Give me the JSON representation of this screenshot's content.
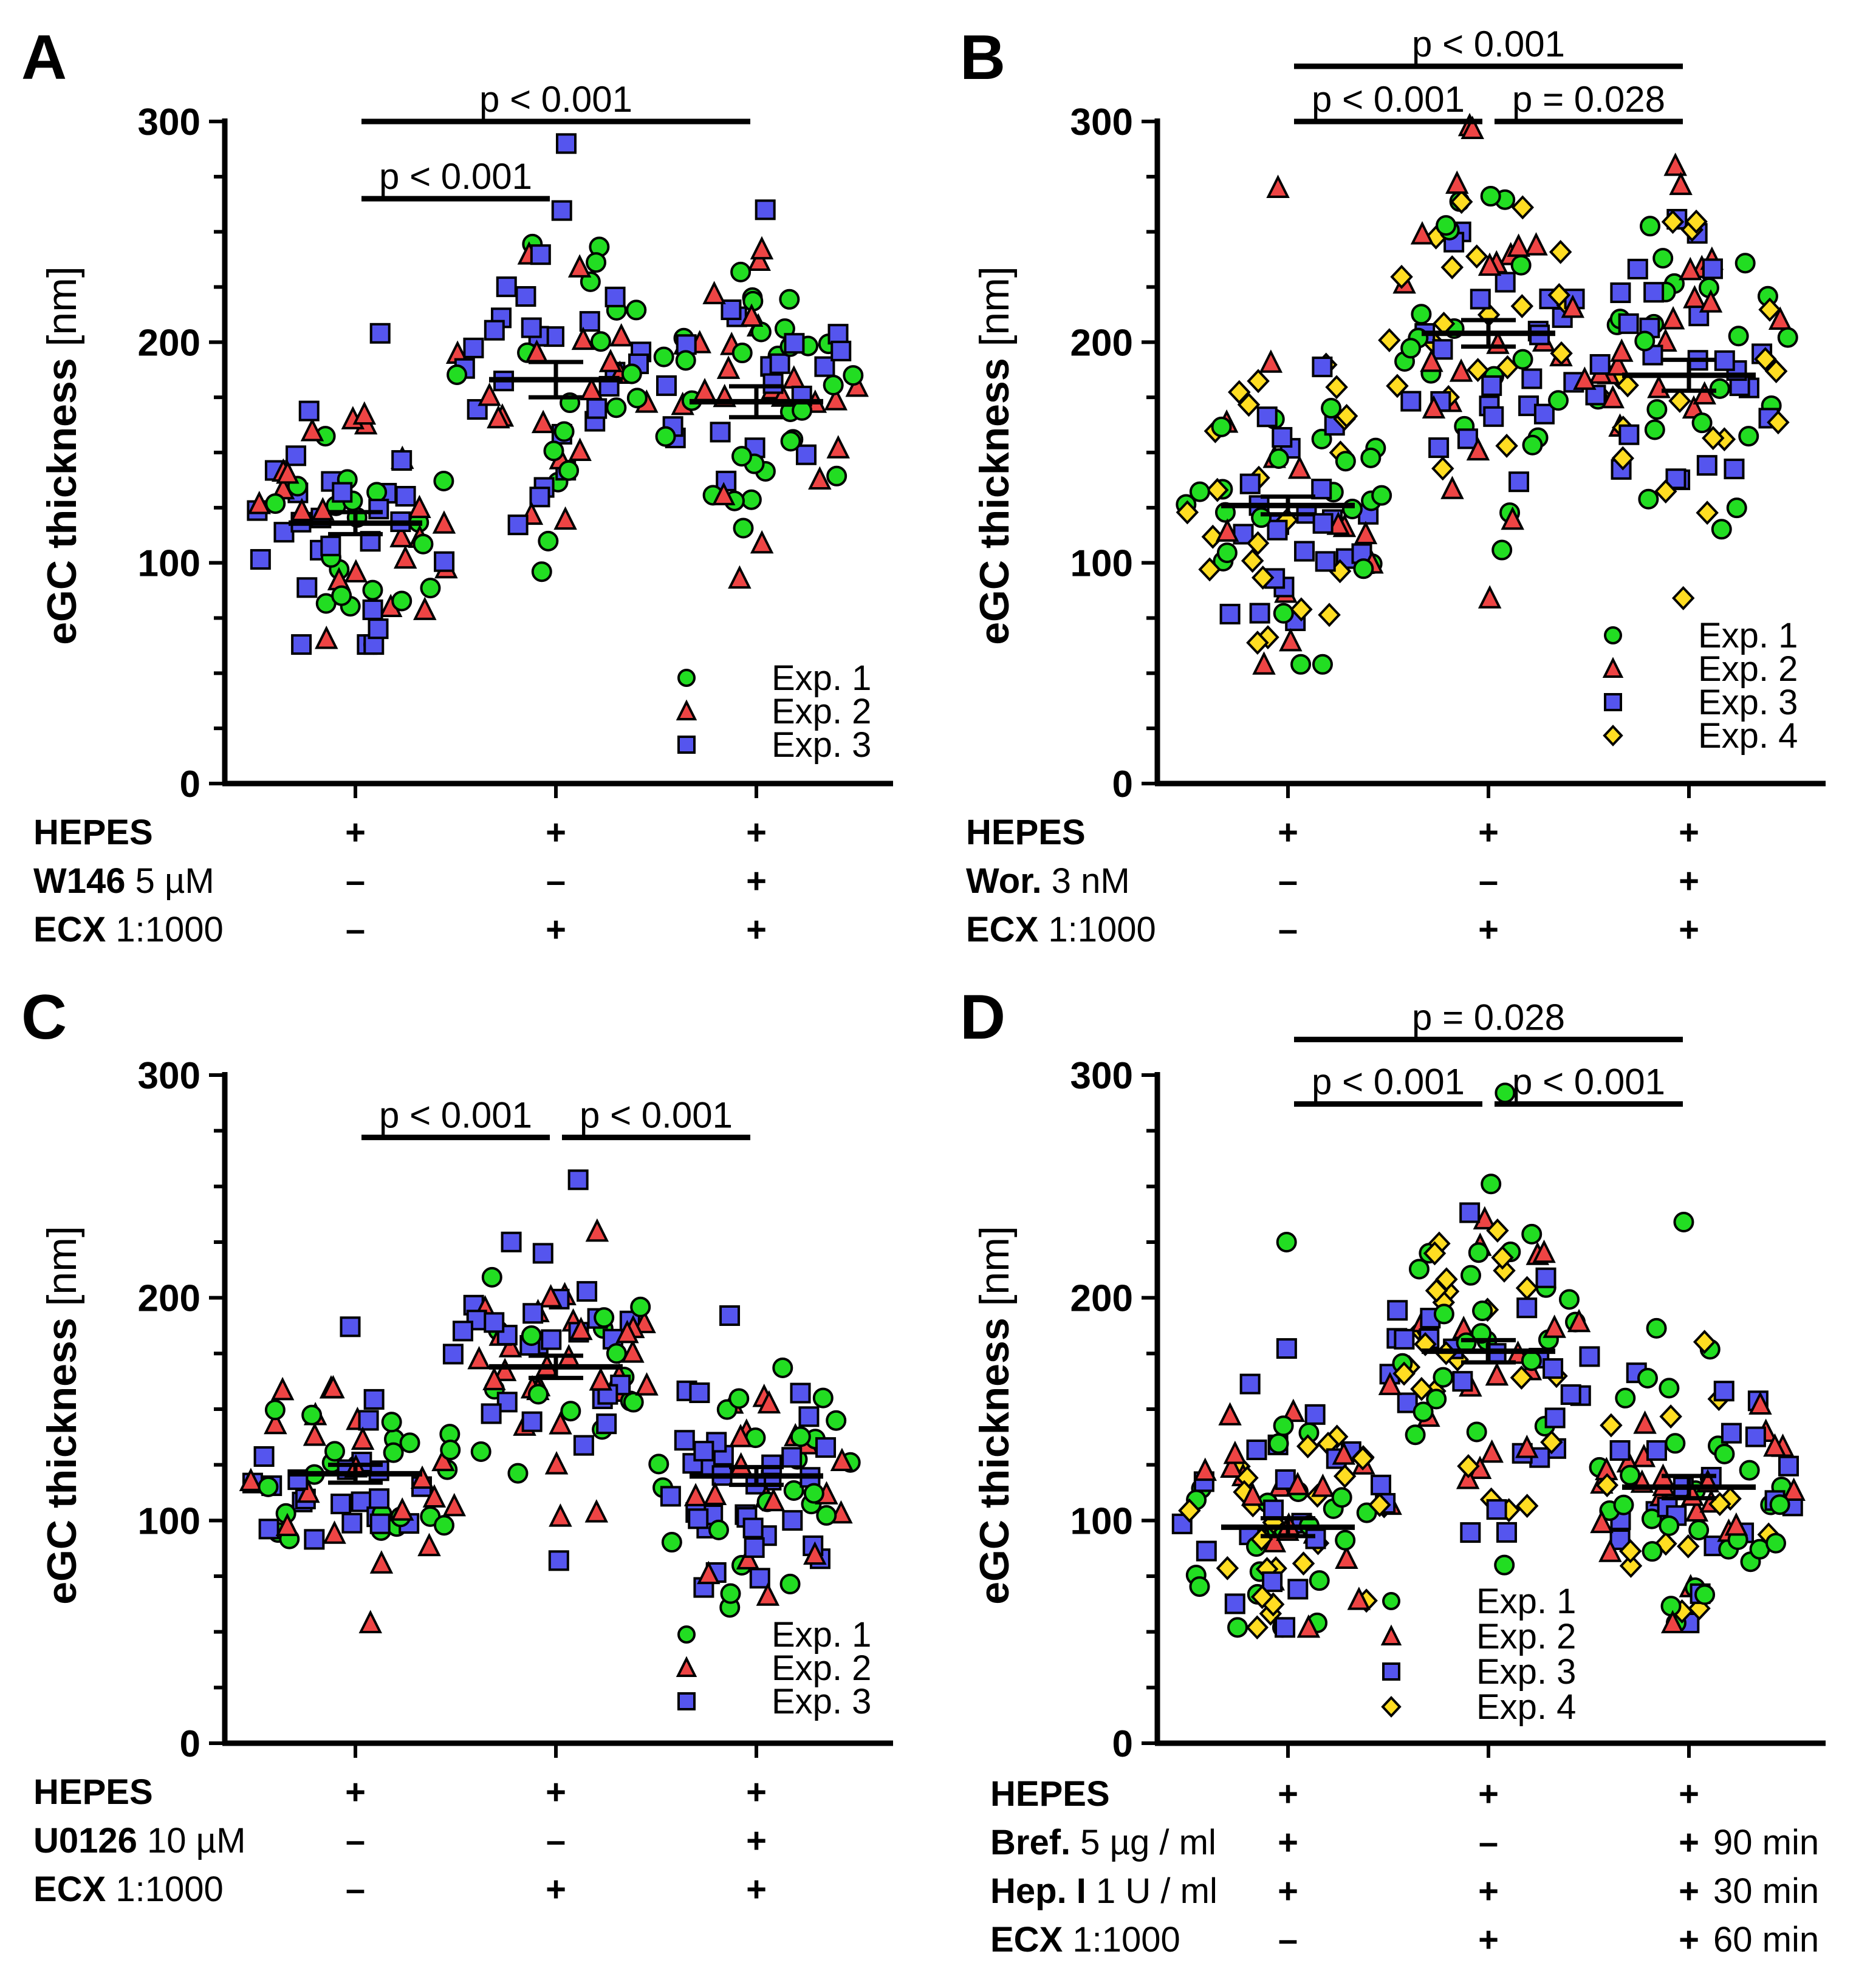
{
  "chart_data": [
    {
      "panel": "A",
      "type": "scatter",
      "ylabel": "eGC thickness",
      "yunit": "[nm]",
      "ylim": [
        0,
        300
      ],
      "yticks": [
        "0",
        "100",
        "200",
        "300"
      ],
      "groups": [
        {
          "mean": 118,
          "sem": 5,
          "min": 63,
          "max": 204,
          "n": 70
        },
        {
          "mean": 183,
          "sem": 8,
          "min": 96,
          "max": 290,
          "n": 64
        },
        {
          "mean": 173,
          "sem": 7,
          "min": 93,
          "max": 260,
          "n": 72
        }
      ],
      "brackets": [
        {
          "from": 0,
          "to": 2,
          "y": 300,
          "label": "p < 0.001"
        },
        {
          "from": 0,
          "to": 1,
          "y": 265,
          "label": "p < 0.001"
        }
      ],
      "legend": [
        "Exp. 1",
        "Exp. 2",
        "Exp. 3"
      ],
      "conditions": [
        {
          "name": "HEPES",
          "dose": "",
          "values": [
            "+",
            "+",
            "+"
          ],
          "extra": ""
        },
        {
          "name": "W146",
          "dose": "5 µM",
          "values": [
            "–",
            "–",
            "+"
          ],
          "extra": ""
        },
        {
          "name": "ECX",
          "dose": "1:1000",
          "values": [
            "–",
            "+",
            "+"
          ],
          "extra": ""
        }
      ]
    },
    {
      "panel": "B",
      "type": "scatter",
      "ylabel": "eGC thickness",
      "yunit": "[nm]",
      "ylim": [
        0,
        300
      ],
      "yticks": [
        "0",
        "100",
        "200",
        "300"
      ],
      "groups": [
        {
          "mean": 126,
          "sem": 4,
          "min": 54,
          "max": 270,
          "n": 84
        },
        {
          "mean": 204,
          "sem": 6,
          "min": 84,
          "max": 298,
          "n": 86
        },
        {
          "mean": 185,
          "sem": 7,
          "min": 84,
          "max": 280,
          "n": 86
        }
      ],
      "brackets": [
        {
          "from": 1,
          "to": 2,
          "y": 300,
          "label": "p = 0.028"
        },
        {
          "from": 0,
          "to": 1,
          "y": 300,
          "label": "p < 0.001"
        },
        {
          "from": 0,
          "to": 2,
          "y": 325,
          "label": "p < 0.001"
        }
      ],
      "legend": [
        "Exp. 1",
        "Exp. 2",
        "Exp. 3",
        "Exp. 4"
      ],
      "conditions": [
        {
          "name": "HEPES",
          "dose": "",
          "values": [
            "+",
            "+",
            "+"
          ],
          "extra": ""
        },
        {
          "name": "Wor.",
          "dose": "3 nM",
          "values": [
            "–",
            "–",
            "+"
          ],
          "extra": ""
        },
        {
          "name": "ECX",
          "dose": "1:1000",
          "values": [
            "–",
            "+",
            "+"
          ],
          "extra": ""
        }
      ]
    },
    {
      "panel": "C",
      "type": "scatter",
      "ylabel": "eGC thickness",
      "yunit": "[nm]",
      "ylim": [
        0,
        300
      ],
      "yticks": [
        "0",
        "100",
        "200",
        "300"
      ],
      "groups": [
        {
          "mean": 121,
          "sem": 4,
          "min": 54,
          "max": 187,
          "n": 66
        },
        {
          "mean": 169,
          "sem": 5,
          "min": 82,
          "max": 253,
          "n": 74
        },
        {
          "mean": 120,
          "sem": 4,
          "min": 61,
          "max": 192,
          "n": 76
        }
      ],
      "brackets": [
        {
          "from": 0,
          "to": 1,
          "y": 272,
          "label": "p < 0.001"
        },
        {
          "from": 1,
          "to": 2,
          "y": 272,
          "label": "p < 0.001"
        }
      ],
      "legend": [
        "Exp. 1",
        "Exp. 2",
        "Exp. 3"
      ],
      "conditions": [
        {
          "name": "HEPES",
          "dose": "",
          "values": [
            "+",
            "+",
            "+"
          ],
          "extra": ""
        },
        {
          "name": "U0126",
          "dose": "10 µM",
          "values": [
            "–",
            "–",
            "+"
          ],
          "extra": ""
        },
        {
          "name": "ECX",
          "dose": "1:1000",
          "values": [
            "–",
            "+",
            "+"
          ],
          "extra": ""
        }
      ]
    },
    {
      "panel": "D",
      "type": "scatter",
      "ylabel": "eGC thickness",
      "yunit": "[nm]",
      "ylim": [
        0,
        300
      ],
      "yticks": [
        "0",
        "100",
        "200",
        "300"
      ],
      "groups": [
        {
          "mean": 97,
          "sem": 4,
          "min": 52,
          "max": 225,
          "n": 92
        },
        {
          "mean": 176,
          "sem": 5,
          "min": 80,
          "max": 292,
          "n": 96
        },
        {
          "mean": 115,
          "sem": 5,
          "min": 54,
          "max": 234,
          "n": 92
        }
      ],
      "brackets": [
        {
          "from": 0,
          "to": 1,
          "y": 287,
          "label": "p < 0.001"
        },
        {
          "from": 1,
          "to": 2,
          "y": 287,
          "label": "p < 0.001"
        },
        {
          "from": 0,
          "to": 2,
          "y": 316,
          "label": "p = 0.028"
        }
      ],
      "legend": [
        "Exp. 1",
        "Exp. 2",
        "Exp. 3",
        "Exp. 4"
      ],
      "conditions": [
        {
          "name": "HEPES",
          "dose": "",
          "values": [
            "+",
            "+",
            "+"
          ],
          "extra": ""
        },
        {
          "name": "Bref.",
          "dose": "5 µg / ml",
          "values": [
            "+",
            "–",
            "+"
          ],
          "extra": "90 min"
        },
        {
          "name": "Hep. I",
          "dose": "1 U / ml",
          "values": [
            "+",
            "+",
            "+"
          ],
          "extra": "30 min"
        },
        {
          "name": "ECX",
          "dose": "1:1000",
          "values": [
            "–",
            "+",
            "+"
          ],
          "extra": "60 min"
        }
      ]
    }
  ],
  "series_colors": {
    "Exp. 1": "#22dd22",
    "Exp. 2": "#ee4444",
    "Exp. 3": "#5555ee",
    "Exp. 4": "#ffdd22"
  }
}
